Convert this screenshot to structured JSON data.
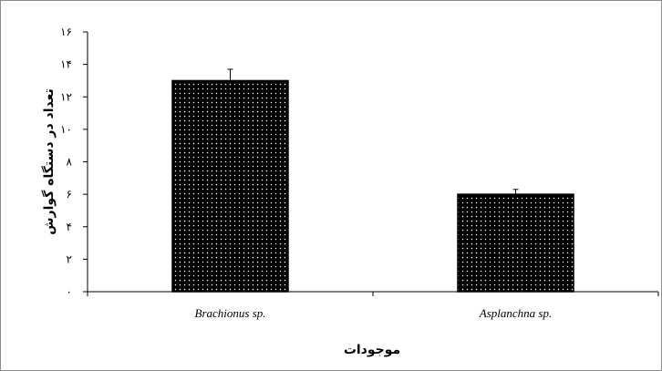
{
  "chart_data": {
    "type": "bar",
    "title": "",
    "xlabel": "موجودات",
    "ylabel": "تعداد در دستگاه گوارش",
    "categories": [
      "Brachionus sp.",
      "Asplanchna sp."
    ],
    "values": [
      13,
      6
    ],
    "errors": [
      0.7,
      0.3
    ],
    "ylim": [
      0,
      16
    ],
    "yticks": [
      0,
      2,
      4,
      6,
      8,
      10,
      12,
      14,
      16
    ],
    "ytick_labels": [
      "۰",
      "۲",
      "۴",
      "۶",
      "۸",
      "۱۰",
      "۱۲",
      "۱۴",
      "۱۶"
    ],
    "grid": false,
    "legend": "none",
    "bar_fill": "#000000",
    "bar_dot_color": "#ffffff"
  }
}
